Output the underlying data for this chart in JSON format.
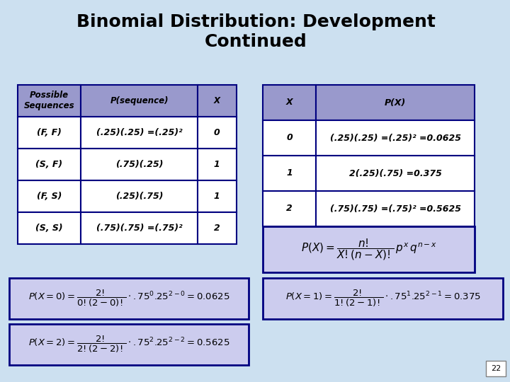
{
  "title": "Binomial Distribution: Development\nContinued",
  "bg_color": "#cce0f0",
  "table1_header": [
    "Possible\nSequences",
    "P(sequence)",
    "X"
  ],
  "table1_rows": [
    [
      "(F, F)",
      "(.25)(.25) =(.25)²",
      "0"
    ],
    [
      "(S, F)",
      "(.75)(.25)",
      "1"
    ],
    [
      "(F, S)",
      "(.25)(.75)",
      "1"
    ],
    [
      "(S, S)",
      "(.75)(.75) =(.75)²",
      "2"
    ]
  ],
  "table2_header": [
    "X",
    "P(X)"
  ],
  "table2_rows": [
    [
      "0",
      "(.25)(.25) =(.25)² =0.0625"
    ],
    [
      "1",
      "2(.25)(.75) =0.375"
    ],
    [
      "2",
      "(.75)(.75) =(.75)² =0.5625"
    ]
  ],
  "formula_box": "P(X) = ——————  pˣ qⁿ⁻ˣ\n         X!(n−X)!\nn!",
  "eq0": "P(X = 0) = —————.75⁰.25²⁻⁰ = 0.0625\n              0!(2−0)!\n2!",
  "eq1": "P(X = 1) = —————.75¹.25²⁻¹ = 0.375\n              1!(2−1)!\n2!",
  "eq2": "P(X = 2) = —————.75².25²⁻² = 0.5625\n              2!(2−2)!\n2!",
  "table_header_color": "#9999cc",
  "table_cell_color": "#ffffff",
  "table_border_color": "#000080",
  "formula_box_color": "#ccccee",
  "formula_border_color": "#000080",
  "page_num": "22"
}
